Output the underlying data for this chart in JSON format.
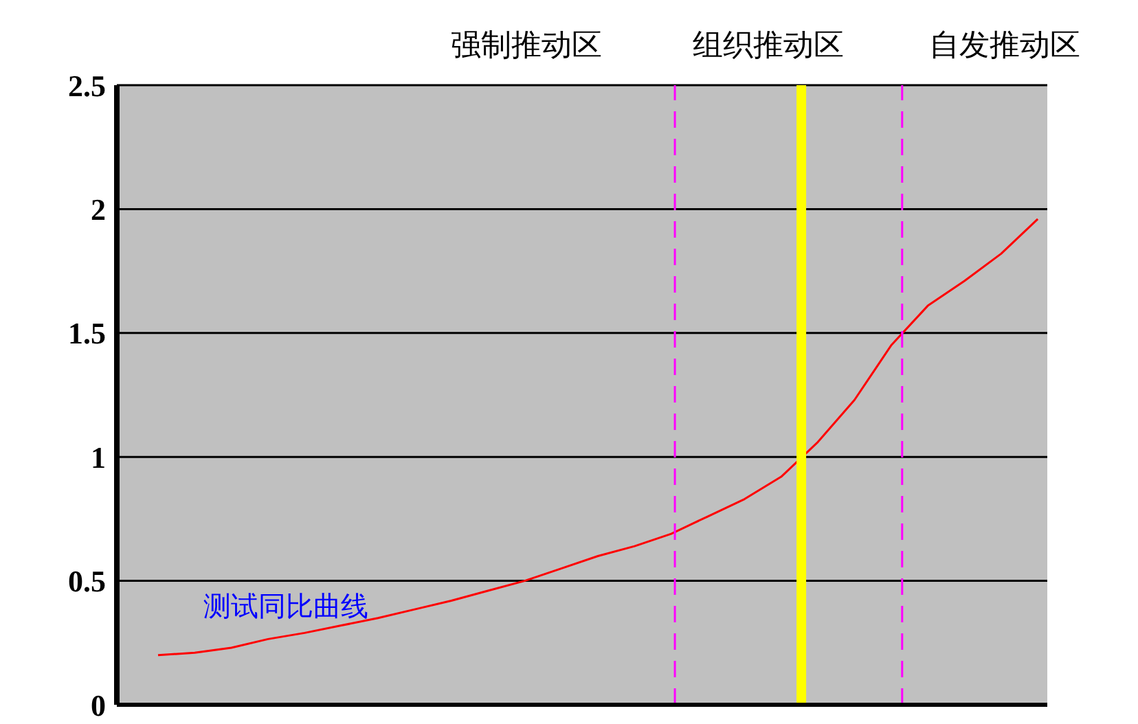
{
  "chart_data": {
    "type": "line",
    "categories": [
      null,
      null,
      null,
      null,
      null,
      null,
      null,
      null,
      null,
      null,
      null,
      null,
      null,
      null,
      null,
      null,
      null,
      null,
      null,
      null,
      null,
      null,
      null,
      null,
      null
    ],
    "series": [
      {
        "color": "#ff0000",
        "values": [
          0.2,
          0.21,
          0.23,
          0.265,
          0.29,
          0.32,
          0.35,
          0.385,
          0.42,
          0.46,
          0.5,
          0.55,
          0.6,
          0.64,
          0.69,
          0.76,
          0.83,
          0.92,
          1.06,
          1.23,
          1.45,
          1.61,
          1.71,
          1.82,
          1.96
        ]
      }
    ],
    "ylim": [
      0,
      2.5
    ],
    "yticks": [
      0,
      0.5,
      1,
      1.5,
      2,
      2.5
    ],
    "grid": "y",
    "marker": "none",
    "line_style": "solid",
    "legend": false,
    "annotations": [
      "强制推动区",
      "组织推动区",
      "自发推动区",
      "测试同比曲线"
    ]
  }
}
